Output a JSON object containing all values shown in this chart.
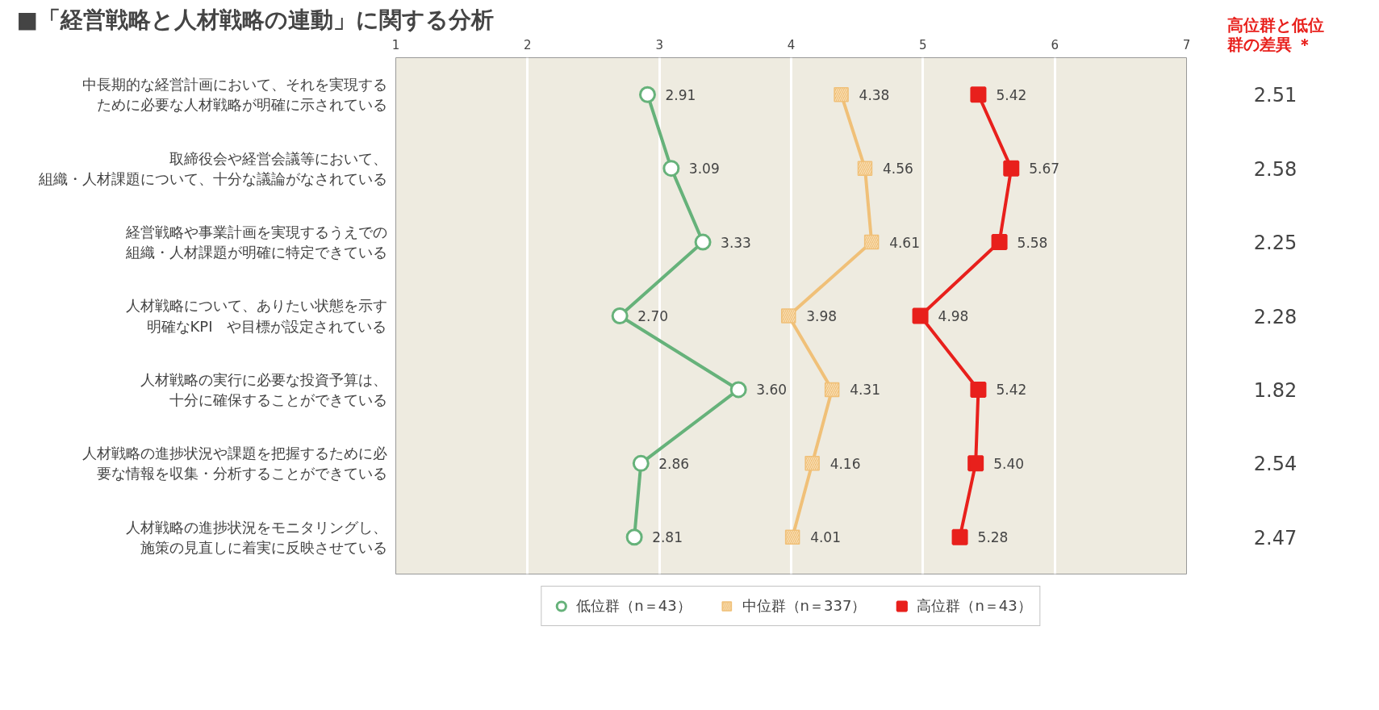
{
  "chart_data": {
    "type": "line",
    "orientation": "horizontal",
    "title": "■「経営戦略と人材戦略の連動」に関する分析",
    "categories": [
      "中長期的な経営計画において、それを実現するために必要な人材戦略が明確に示されている",
      "取締役会や経営会議等において、組織・人材課題について、十分な議論がなされている",
      "経営戦略や事業計画を実現するうえでの組織・人材課題が明確に特定できている",
      "人材戦略について、ありたい状態を示す明確なKPI　や目標が設定されている",
      "人材戦略の実行に必要な投資予算は、十分に確保することができている",
      "人材戦略の進捗状況や課題を把握するために必要な情報を収集・分析することができている",
      "人材戦略の進捗状況をモニタリングし、施策の見直しに着実に反映させている"
    ],
    "series": [
      {
        "name": "低位群（n＝43）",
        "color": "#66b27a",
        "marker": "circle",
        "values": [
          2.91,
          3.09,
          3.33,
          2.7,
          3.6,
          2.86,
          2.81
        ],
        "value_labels": [
          "2.91",
          "3.09",
          "3.33",
          "2.70",
          "3.60",
          "2.86",
          "2.81"
        ]
      },
      {
        "name": "中位群（n＝337）",
        "color": "#f0c078",
        "marker": "square",
        "values": [
          4.38,
          4.56,
          4.61,
          3.98,
          4.31,
          4.16,
          4.01
        ],
        "value_labels": [
          "4.38",
          "4.56",
          "4.61",
          "3.98",
          "4.31",
          "4.16",
          "4.01"
        ]
      },
      {
        "name": "高位群（n＝43）",
        "color": "#e8201c",
        "marker": "square",
        "values": [
          5.42,
          5.67,
          5.58,
          4.98,
          5.42,
          5.4,
          5.28
        ],
        "value_labels": [
          "5.42",
          "5.67",
          "5.58",
          "4.98",
          "5.42",
          "5.40",
          "5.28"
        ]
      }
    ],
    "xlim": [
      1,
      7
    ],
    "xticks": [
      1,
      2,
      3,
      4,
      5,
      6,
      7
    ],
    "grid": "x",
    "legend": "bottom",
    "annotations": [
      "高位群と低位群の差異 ＊",
      "2.51",
      "2.58",
      "2.25",
      "2.28",
      "1.82",
      "2.54",
      "2.47"
    ]
  }
}
